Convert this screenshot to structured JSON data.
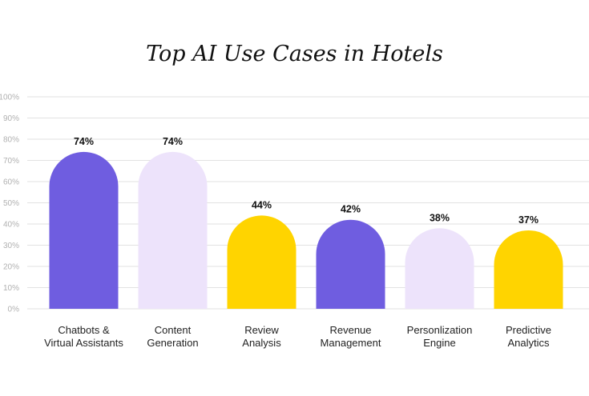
{
  "chart_data": {
    "type": "bar",
    "title": "Top AI Use Cases in Hotels",
    "xlabel": "",
    "ylabel": "",
    "ylim": [
      0,
      100
    ],
    "y_ticks": [
      "0%",
      "10%",
      "20%",
      "30%",
      "40%",
      "50%",
      "60%",
      "70%",
      "80%",
      "90%",
      "100%"
    ],
    "grid": true,
    "categories": [
      [
        "Chatbots &",
        "Virtual Assistants"
      ],
      [
        "Content",
        "Generation"
      ],
      [
        "Review",
        "Analysis"
      ],
      [
        "Revenue",
        "Management"
      ],
      [
        "Personlization",
        "Engine"
      ],
      [
        "Predictive",
        "Analytics"
      ]
    ],
    "values": [
      74,
      74,
      44,
      42,
      38,
      37
    ],
    "data_labels": [
      "74%",
      "74%",
      "44%",
      "42%",
      "38%",
      "37%"
    ],
    "colors": [
      "#6f5de0",
      "#ede3fb",
      "#ffd400",
      "#6f5de0",
      "#ede3fb",
      "#ffd400"
    ],
    "gridline_color": "#e2e2e2"
  }
}
